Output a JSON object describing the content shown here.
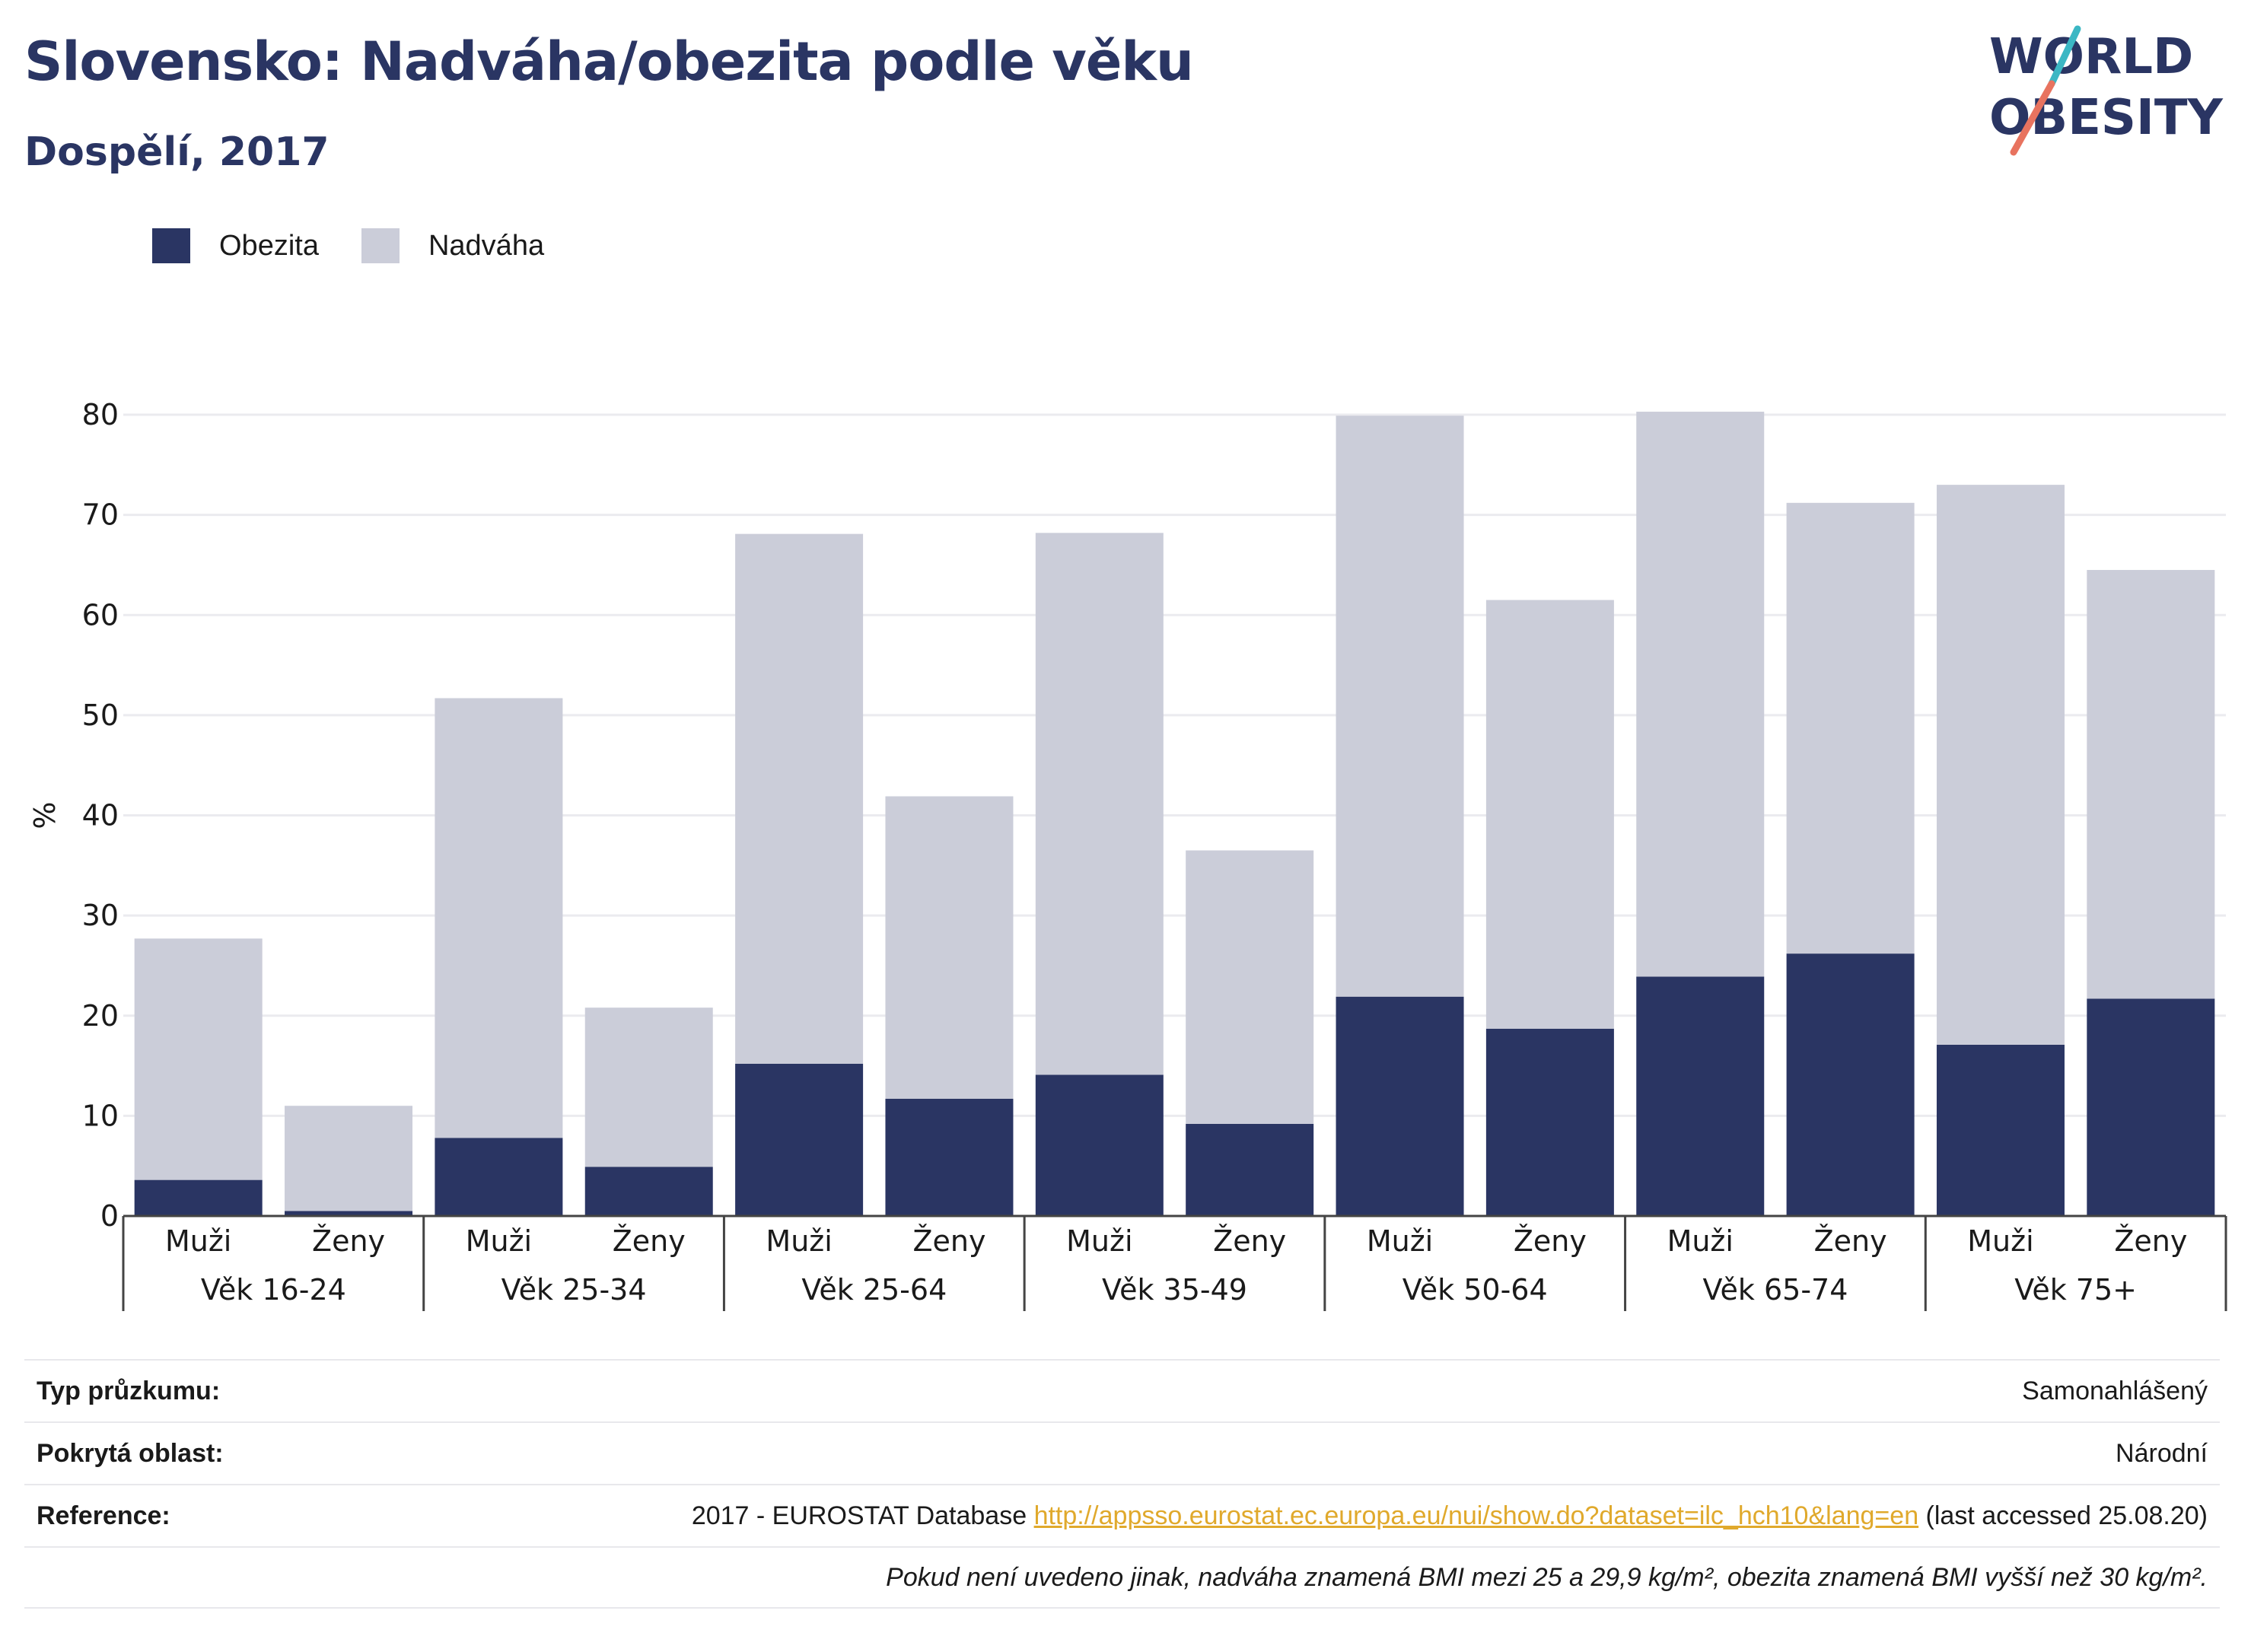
{
  "header": {
    "title": "Slovensko: Nadváha/obezita podle věku",
    "subtitle": "Dospělí, 2017"
  },
  "logo": {
    "line1": "WORLD",
    "line2": "OBESITY",
    "colors": {
      "text": "#2a3563",
      "slash_top": "#3bb7c4",
      "slash_bottom": "#e8735f"
    }
  },
  "legend": {
    "items": [
      {
        "label": "Obezita",
        "color": "#2a3563"
      },
      {
        "label": "Nadváha",
        "color": "#cbcdd9"
      }
    ]
  },
  "chart_data": {
    "type": "bar",
    "stacked": true,
    "ylabel": "%",
    "ylim": [
      0,
      80
    ],
    "yticks": [
      0,
      10,
      20,
      30,
      40,
      50,
      60,
      70,
      80
    ],
    "grid": true,
    "legend_position": "top-left",
    "groups": [
      "Věk 16-24",
      "Věk 25-34",
      "Věk 25-64",
      "Věk 35-49",
      "Věk 50-64",
      "Věk 65-74",
      "Věk 75+"
    ],
    "categories": [
      "Muži",
      "Ženy",
      "Muži",
      "Ženy",
      "Muži",
      "Ženy",
      "Muži",
      "Ženy",
      "Muži",
      "Ženy",
      "Muži",
      "Ženy",
      "Muži",
      "Ženy"
    ],
    "series": [
      {
        "name": "Obezita",
        "color": "#2a3563",
        "values": [
          3.6,
          0.5,
          7.8,
          4.9,
          15.2,
          11.7,
          14.1,
          9.2,
          21.9,
          18.7,
          23.9,
          26.2,
          17.1,
          21.7
        ]
      },
      {
        "name": "Nadváha",
        "color": "#cbcdd9",
        "values": [
          24.1,
          10.5,
          43.9,
          15.9,
          52.9,
          30.2,
          54.1,
          27.3,
          58.0,
          42.8,
          56.4,
          45.0,
          55.9,
          42.8
        ]
      }
    ],
    "totals": [
      27.7,
      11.0,
      51.7,
      20.8,
      68.1,
      41.9,
      68.2,
      36.5,
      79.9,
      61.5,
      80.3,
      71.2,
      73.0,
      64.5
    ]
  },
  "info": {
    "rows": [
      {
        "label": "Typ průzkumu:",
        "value": "Samonahlášený"
      },
      {
        "label": "Pokrytá oblast:",
        "value": "Národní"
      }
    ],
    "reference": {
      "label": "Reference:",
      "prefix": "2017 - EUROSTAT Database ",
      "link": "http://appsso.eurostat.ec.europa.eu/nui/show.do?dataset=ilc_hch10&lang=en",
      "suffix": " (last accessed 25.08.20)"
    },
    "note": "Pokud není uvedeno jinak, nadváha znamená BMI mezi 25 a 29,9 kg/m², obezita znamená BMI vyšší než 30 kg/m²."
  }
}
